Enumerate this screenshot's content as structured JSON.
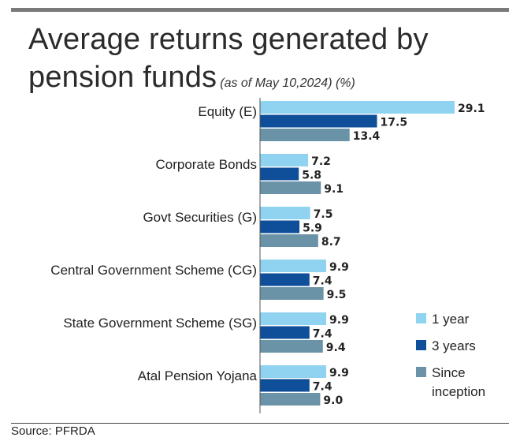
{
  "header": {
    "title": "Average returns generated by pension funds",
    "subtitle": "(as of May 10,2024) (%)"
  },
  "footer": {
    "source": "Source: PFRDA"
  },
  "colors": {
    "one_year": "#8fd3f0",
    "three_years": "#0f4f99",
    "since_inception": "#6b93a8"
  },
  "chart_data": {
    "type": "bar",
    "orientation": "horizontal",
    "title": "Average returns generated by pension funds",
    "subtitle": "(as of May 10,2024) (%)",
    "categories": [
      "Equity (E)",
      "Corporate Bonds",
      "Govt Securities (G)",
      "Central Government Scheme (CG)",
      "State Government Scheme (SG)",
      "Atal Pension Yojana"
    ],
    "series": [
      {
        "name": "1 year",
        "values": [
          29.1,
          7.2,
          7.5,
          9.9,
          9.9,
          9.9
        ]
      },
      {
        "name": "3 years",
        "values": [
          17.5,
          5.8,
          5.9,
          7.4,
          7.4,
          7.4
        ]
      },
      {
        "name": "Since inception",
        "values": [
          13.4,
          9.1,
          8.7,
          9.5,
          9.4,
          9.0
        ]
      }
    ],
    "value_labels": [
      [
        "29.1",
        "7.2",
        "7.5",
        "9.9",
        "9.9",
        "9.9"
      ],
      [
        "17.5",
        "5.8",
        "5.9",
        "7.4",
        "7.4",
        "7.4"
      ],
      [
        "13.4",
        "9.1",
        "8.7",
        "9.5",
        "9.4",
        "9.0"
      ]
    ],
    "legend": {
      "placement": "bottom-right",
      "items": [
        {
          "lines": [
            "1 year"
          ]
        },
        {
          "lines": [
            "3 years"
          ]
        },
        {
          "lines": [
            "Since",
            "inception"
          ]
        }
      ]
    },
    "xlim": [
      0,
      29.1
    ],
    "grid": false
  }
}
